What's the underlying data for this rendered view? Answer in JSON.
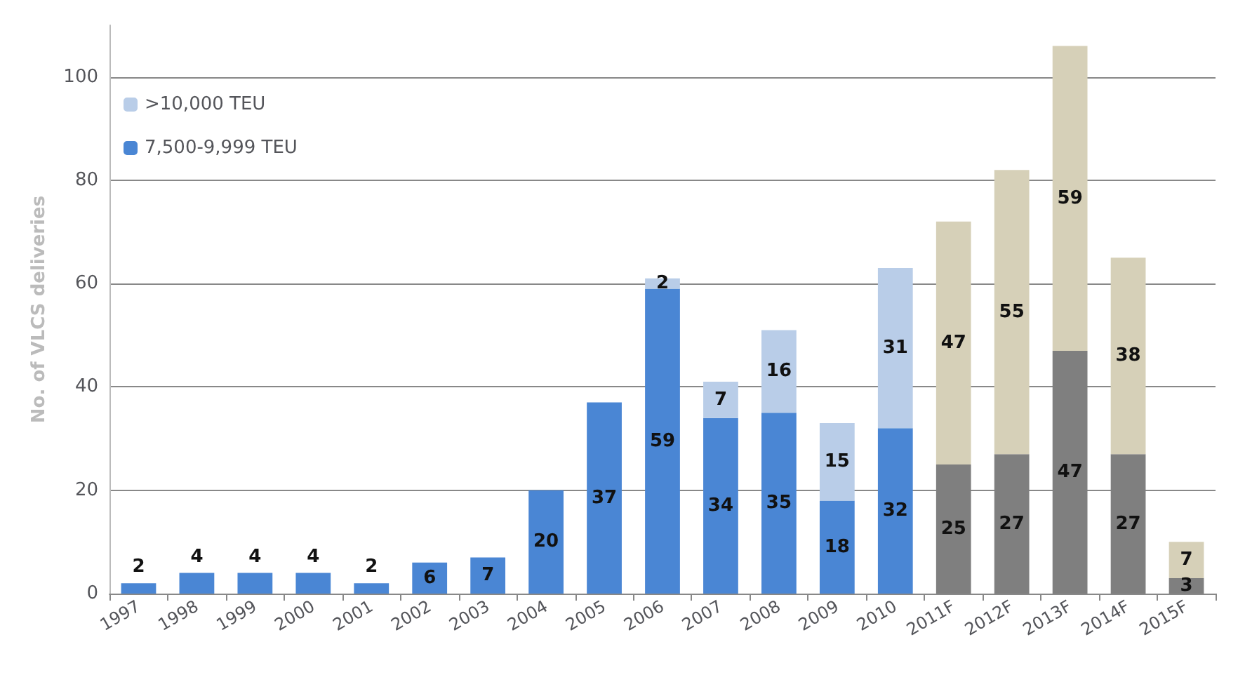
{
  "chart_data": {
    "type": "bar",
    "stacked": true,
    "ylabel": "No. of VLCS deliveries",
    "categories": [
      "1997",
      "1998",
      "1999",
      "2000",
      "2001",
      "2002",
      "2003",
      "2004",
      "2005",
      "2006",
      "2007",
      "2008",
      "2009",
      "2010",
      "2011F",
      "2012F",
      "2013F",
      "2014F",
      "2015F"
    ],
    "series": [
      {
        "name": "7,500-9,999 TEU",
        "color": "#4a86d4",
        "colors": [
          "#4a86d4",
          "#4a86d4",
          "#4a86d4",
          "#4a86d4",
          "#4a86d4",
          "#4a86d4",
          "#4a86d4",
          "#4a86d4",
          "#4a86d4",
          "#4a86d4",
          "#4a86d4",
          "#4a86d4",
          "#4a86d4",
          "#4a86d4",
          "#7f7f7f",
          "#7f7f7f",
          "#7f7f7f",
          "#7f7f7f",
          "#7f7f7f"
        ],
        "values": [
          2,
          4,
          4,
          4,
          2,
          6,
          7,
          20,
          37,
          59,
          34,
          35,
          18,
          32,
          25,
          27,
          47,
          27,
          3
        ]
      },
      {
        "name": ">10,000 TEU",
        "color": "#b9cde8",
        "colors": [
          "#b9cde8",
          "#b9cde8",
          "#b9cde8",
          "#b9cde8",
          "#b9cde8",
          "#b9cde8",
          "#b9cde8",
          "#b9cde8",
          "#b9cde8",
          "#b9cde8",
          "#b9cde8",
          "#b9cde8",
          "#b9cde8",
          "#b9cde8",
          "#d6d0b8",
          "#d6d0b8",
          "#d6d0b8",
          "#d6d0b8",
          "#d6d0b8"
        ],
        "values": [
          null,
          null,
          null,
          null,
          null,
          null,
          null,
          null,
          null,
          2,
          7,
          16,
          15,
          31,
          47,
          55,
          59,
          38,
          7
        ]
      }
    ],
    "ylim": [
      0,
      110
    ],
    "yticks": [
      0,
      20,
      40,
      60,
      80,
      100
    ],
    "grid": "y",
    "legend": "top left",
    "data_labels": true
  }
}
